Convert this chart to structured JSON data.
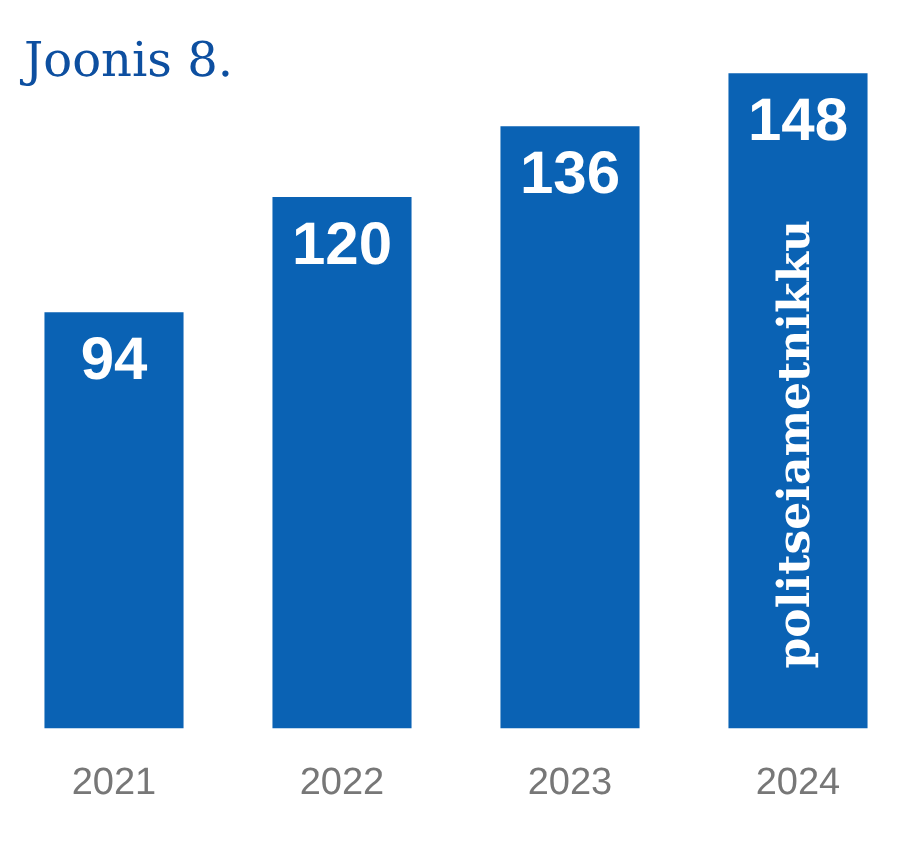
{
  "chart_data": {
    "type": "bar",
    "categories": [
      "2021",
      "2022",
      "2023",
      "2024"
    ],
    "values": [
      94,
      120,
      136,
      148
    ],
    "color": "#0a62b4",
    "data_labels": true,
    "grid": false,
    "legend": false,
    "tick_labels": "x",
    "annotations": [
      "Joonis 8.",
      "politseiametnikku"
    ]
  }
}
